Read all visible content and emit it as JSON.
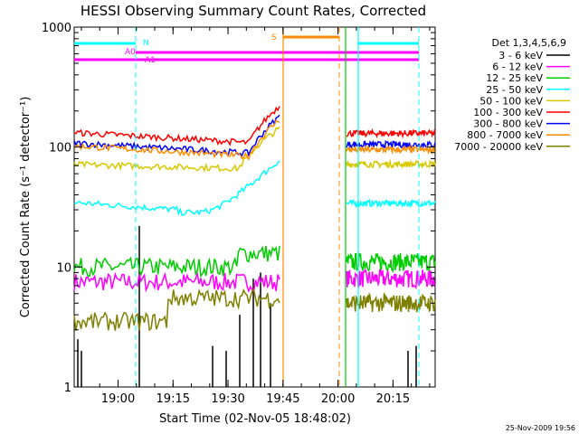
{
  "chart_data": {
    "type": "line",
    "title": "HESSI Observing Summary Count Rates, Corrected",
    "xlabel": "Start Time (02-Nov-05 18:48:02)",
    "ylabel": "Corrected Count Rate (s⁻¹ detector⁻¹)",
    "yscale": "log",
    "ylim": [
      1,
      1000
    ],
    "xlim_minutes": [
      "18:48:02",
      "20:26:30"
    ],
    "x_ticks": [
      "19:00",
      "19:15",
      "19:30",
      "19:45",
      "20:00",
      "20:15"
    ],
    "y_ticks": [
      "1",
      "10",
      "100",
      "1000"
    ],
    "legend_title": "Det 1,3,4,5,6,9",
    "legend_position": "right",
    "series": [
      {
        "name": "3 - 6 keV",
        "color": "#000000"
      },
      {
        "name": "6 - 12 keV",
        "color": "#ff00ff"
      },
      {
        "name": "12 - 25 keV",
        "color": "#00cc00"
      },
      {
        "name": "25 - 50 keV",
        "color": "#00ffff"
      },
      {
        "name": "50 - 100 keV",
        "color": "#d8c800"
      },
      {
        "name": "100 - 300 keV",
        "color": "#ff0000"
      },
      {
        "name": "300 - 800 keV",
        "color": "#0000ff"
      },
      {
        "name": "800 - 7000 keV",
        "color": "#ff8c00"
      },
      {
        "name": "7000 - 20000 keV",
        "color": "#808000"
      }
    ],
    "segments": {
      "approx_levels_before_gap": {
        "100 - 300 keV": 110,
        "300 - 800 keV": 90,
        "800 - 7000 keV": 85,
        "50 - 100 keV": 65,
        "25 - 50 keV": 30,
        "12 - 25 keV": 10,
        "6 - 12 keV": 7.5,
        "7000 - 20000 keV": 5
      },
      "approx_levels_after_gap": {
        "100 - 300 keV": 130,
        "300 - 800 keV": 105,
        "800 - 7000 keV": 95,
        "50 - 100 keV": 72,
        "25 - 50 keV": 34,
        "12 - 25 keV": 11,
        "6 - 12 keV": 8,
        "7000 - 20000 keV": 5
      }
    },
    "flags": [
      {
        "label": "N",
        "color": "#00ffff"
      },
      {
        "label": "A0",
        "color": "#ff00ff"
      },
      {
        "label": "A1",
        "color": "#ff00ff"
      },
      {
        "label": "S",
        "color": "#ff8c00"
      }
    ]
  },
  "footer": {
    "timestamp": "25-Nov-2009 19:56"
  }
}
